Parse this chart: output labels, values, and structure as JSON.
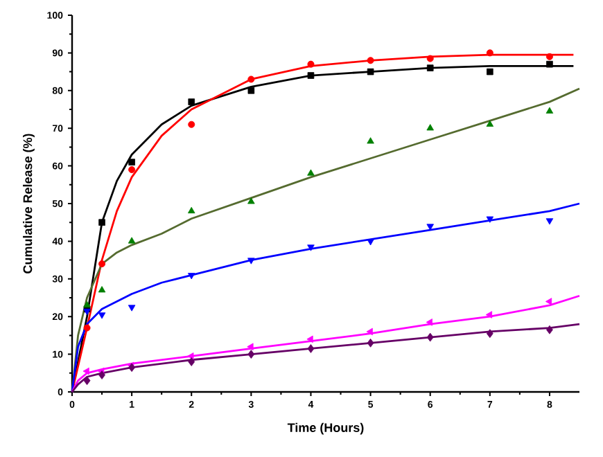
{
  "chart_data": {
    "type": "scatter",
    "xlabel": "Time (Hours)",
    "ylabel": "Cumulative Release (%)",
    "xlim": [
      0,
      8.5
    ],
    "ylim": [
      0,
      100
    ],
    "xticks": [
      0,
      1,
      2,
      3,
      4,
      5,
      6,
      7,
      8
    ],
    "yticks": [
      0,
      10,
      20,
      30,
      40,
      50,
      60,
      70,
      80,
      90,
      100
    ],
    "x": [
      0.25,
      0.5,
      1,
      2,
      3,
      4,
      5,
      6,
      7,
      8
    ],
    "series": [
      {
        "type": "line",
        "color": "#000000",
        "x": [
          0,
          0.25,
          0.5,
          0.75,
          1,
          1.5,
          2,
          3,
          4,
          5,
          6,
          7,
          8,
          8.4
        ],
        "values": [
          0,
          20,
          45,
          56,
          63,
          71,
          76,
          81,
          84,
          85,
          86,
          86.5,
          86.5,
          86.5
        ]
      },
      {
        "type": "line",
        "color": "#ff0000",
        "x": [
          0,
          0.25,
          0.5,
          0.75,
          1,
          1.5,
          2,
          3,
          4,
          5,
          6,
          7,
          8,
          8.4
        ],
        "values": [
          0,
          17,
          35,
          48,
          57,
          68,
          75,
          83,
          86.5,
          88,
          89,
          89.5,
          89.5,
          89.5
        ]
      },
      {
        "type": "line",
        "color": "#556b2f",
        "x": [
          0,
          0.1,
          0.25,
          0.5,
          0.75,
          1,
          1.5,
          2,
          3,
          4,
          5,
          6,
          7,
          8,
          8.5
        ],
        "values": [
          0,
          15,
          25,
          34,
          37,
          39,
          42,
          46,
          51.5,
          57,
          62,
          67,
          72,
          77,
          80.5
        ]
      },
      {
        "type": "line",
        "color": "#0000ff",
        "x": [
          0,
          0.1,
          0.25,
          0.5,
          1,
          1.5,
          2,
          3,
          4,
          5,
          6,
          7,
          8,
          8.5
        ],
        "values": [
          0,
          12,
          18,
          22,
          26,
          29,
          31,
          35,
          38,
          40.5,
          43,
          45.5,
          48,
          50
        ]
      },
      {
        "type": "line",
        "color": "#ff00ff",
        "x": [
          0,
          0.1,
          0.25,
          0.5,
          1,
          2,
          3,
          4,
          5,
          6,
          7,
          8,
          8.5
        ],
        "values": [
          0,
          3,
          5,
          6,
          7.5,
          9.5,
          11.5,
          13.5,
          15.5,
          18,
          20,
          23,
          25.5
        ]
      },
      {
        "type": "line",
        "color": "#660066",
        "x": [
          0,
          0.1,
          0.25,
          0.5,
          1,
          2,
          3,
          4,
          5,
          6,
          7,
          8,
          8.5
        ],
        "values": [
          0,
          2,
          4,
          5,
          6.5,
          8.5,
          10,
          11.5,
          13,
          14.5,
          16,
          17,
          18
        ]
      },
      {
        "marker": "square",
        "color": "#000000",
        "values": [
          22,
          45,
          61,
          77,
          80,
          84,
          85,
          86,
          85,
          87
        ]
      },
      {
        "marker": "circle",
        "color": "#ff0000",
        "values": [
          17,
          34,
          59,
          71,
          83,
          87,
          88,
          88.5,
          90,
          89
        ]
      },
      {
        "marker": "triangle",
        "color": "#008000",
        "values": [
          23,
          27,
          40,
          48,
          50.5,
          58,
          66.5,
          70,
          71,
          74.5
        ]
      },
      {
        "marker": "triangle-down",
        "color": "#0000ff",
        "values": [
          21.5,
          20.5,
          22.5,
          31,
          35,
          38.5,
          40,
          44,
          46,
          45.5
        ]
      },
      {
        "marker": "triangle-left",
        "color": "#ff00ff",
        "values": [
          5.5,
          5.5,
          7,
          9.5,
          12,
          14,
          16,
          18.5,
          20.5,
          24
        ]
      },
      {
        "marker": "diamond",
        "color": "#660066",
        "values": [
          3,
          4.5,
          6.5,
          8,
          10,
          11.5,
          13,
          14.5,
          15.5,
          16.5
        ]
      }
    ]
  }
}
